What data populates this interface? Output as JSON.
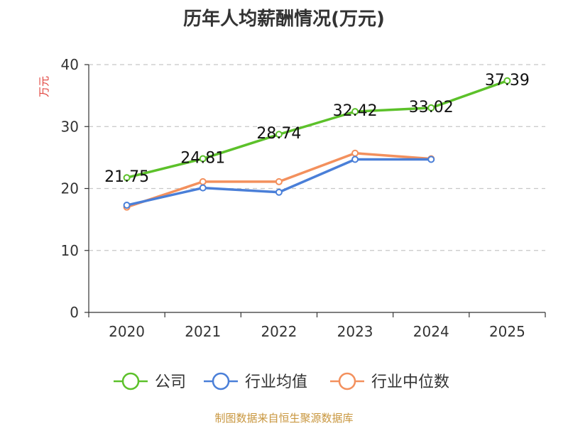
{
  "chart_data": {
    "type": "line",
    "title": "历年人均薪酬情况(万元)",
    "ylabel": "万元",
    "ylim": [
      0,
      40
    ],
    "yticks": [
      0,
      10,
      20,
      30,
      40
    ],
    "categories": [
      "2020",
      "2021",
      "2022",
      "2023",
      "2024",
      "2025"
    ],
    "series": [
      {
        "name": "公司",
        "color": "#5cc12a",
        "values": [
          21.75,
          24.81,
          28.74,
          32.42,
          33.02,
          37.39
        ],
        "labels": [
          "21.75",
          "24.81",
          "28.74",
          "32.42",
          "33.02",
          "37.39"
        ]
      },
      {
        "name": "行业均值",
        "color": "#4a7fd8",
        "values": [
          17.3,
          20.1,
          19.4,
          24.7,
          24.7,
          null
        ]
      },
      {
        "name": "行业中位数",
        "color": "#f3905d",
        "values": [
          17.0,
          21.1,
          21.1,
          25.7,
          24.8,
          null
        ]
      }
    ],
    "legend_position": "bottom",
    "grid": true
  },
  "source": "制图数据来自恒生聚源数据库"
}
